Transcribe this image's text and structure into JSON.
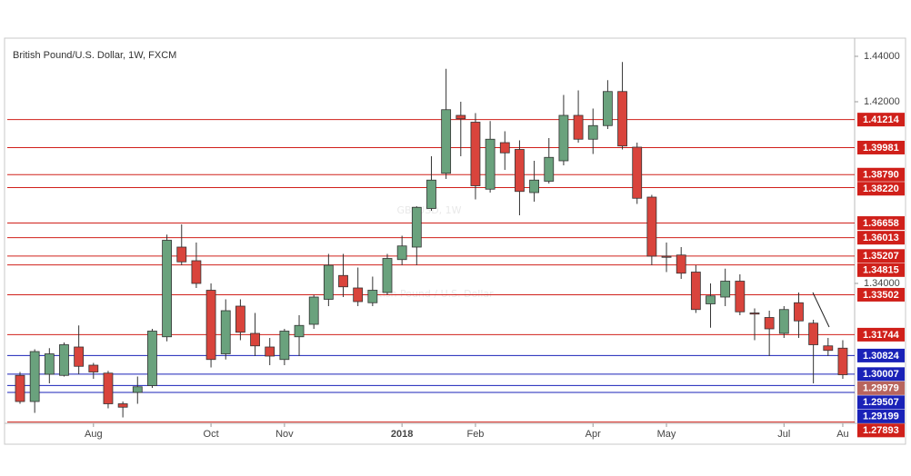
{
  "chart_data": {
    "type": "candlestick",
    "title": "British Pound/U.S. Dollar, 1W, FXCM",
    "watermark": "GBPUSD, 1W",
    "watermark_subtitle": "British Pound / U.S. Dollar",
    "x": [
      null,
      null,
      null,
      null,
      null,
      "Aug",
      null,
      null,
      null,
      null,
      null,
      null,
      null,
      "Oct",
      null,
      null,
      null,
      null,
      "Nov",
      null,
      null,
      null,
      null,
      null,
      null,
      null,
      "2018",
      null,
      null,
      null,
      null,
      "Feb",
      null,
      null,
      null,
      null,
      null,
      null,
      null,
      "Apr",
      null,
      null,
      null,
      null,
      "May",
      null,
      null,
      null,
      null,
      null,
      null,
      null,
      "Jul",
      null,
      null,
      null,
      "Au"
    ],
    "open": [
      1.2995,
      1.288,
      1.3,
      1.2995,
      1.312,
      1.304,
      1.3005,
      1.287,
      1.292,
      1.295,
      1.3165,
      1.356,
      1.35,
      1.337,
      1.309,
      1.33,
      1.318,
      1.312,
      1.3065,
      1.3165,
      1.322,
      1.333,
      1.3435,
      1.338,
      1.3315,
      1.336,
      1.3505,
      1.356,
      1.373,
      1.3885,
      1.414,
      1.411,
      1.3815,
      1.402,
      1.399,
      1.38,
      1.385,
      1.394,
      1.414,
      1.4035,
      1.4095,
      1.4245,
      1.4,
      1.378,
      1.352,
      1.3525,
      1.345,
      1.331,
      1.334,
      1.341,
      1.327,
      1.325,
      1.318,
      1.3315,
      1.3225,
      1.3125,
      1.3115
    ],
    "high": [
      1.301,
      1.311,
      1.3115,
      1.314,
      1.3215,
      1.305,
      1.3015,
      1.288,
      1.299,
      1.32,
      1.3615,
      1.366,
      1.358,
      1.34,
      1.333,
      1.333,
      1.327,
      1.316,
      1.32,
      1.326,
      1.335,
      1.353,
      1.353,
      1.347,
      1.343,
      1.353,
      1.361,
      1.374,
      1.396,
      1.4345,
      1.42,
      1.415,
      1.4115,
      1.407,
      1.403,
      1.394,
      1.404,
      1.423,
      1.425,
      1.417,
      1.4295,
      1.4375,
      1.402,
      1.379,
      1.358,
      1.356,
      1.348,
      1.34,
      1.3465,
      1.344,
      1.329,
      1.328,
      1.33,
      1.336,
      1.324,
      1.316,
      1.315
    ],
    "low": [
      1.287,
      1.283,
      1.296,
      1.299,
      1.3,
      1.298,
      1.285,
      1.281,
      1.287,
      1.294,
      1.3145,
      1.348,
      1.338,
      1.303,
      1.3065,
      1.315,
      1.308,
      1.304,
      1.304,
      1.308,
      1.32,
      1.33,
      1.334,
      1.33,
      1.33,
      1.335,
      1.348,
      1.348,
      1.372,
      1.386,
      1.396,
      1.377,
      1.38,
      1.39,
      1.37,
      1.376,
      1.384,
      1.392,
      1.402,
      1.397,
      1.408,
      1.399,
      1.375,
      1.348,
      1.345,
      1.342,
      1.327,
      1.3205,
      1.33,
      1.326,
      1.315,
      1.308,
      1.316,
      1.316,
      1.296,
      1.308,
      1.298
    ],
    "close": [
      1.288,
      1.31,
      1.309,
      1.313,
      1.3035,
      1.301,
      1.287,
      1.2855,
      1.2945,
      1.319,
      1.359,
      1.3495,
      1.34,
      1.3065,
      1.328,
      1.3185,
      1.3125,
      1.308,
      1.319,
      1.3215,
      1.334,
      1.348,
      1.3385,
      1.332,
      1.337,
      1.351,
      1.3565,
      1.3735,
      1.3855,
      1.4165,
      1.4125,
      1.383,
      1.4035,
      1.3975,
      1.3805,
      1.3855,
      1.3955,
      1.414,
      1.4035,
      1.4095,
      1.4245,
      1.4005,
      1.3775,
      1.352,
      1.3515,
      1.3445,
      1.3285,
      1.3345,
      1.341,
      1.3275,
      1.3265,
      1.32,
      1.3285,
      1.3235,
      1.313,
      1.3105,
      1.29979
    ],
    "up_color": "#6aa27d",
    "down_color": "#d9443c",
    "ylim": [
      1.2784,
      1.4472
    ],
    "yticks": [
      {
        "value": 1.44,
        "label": "1.44000"
      },
      {
        "value": 1.42,
        "label": "1.42000"
      },
      {
        "value": 1.34,
        "label": "1.34000"
      }
    ],
    "levels": [
      {
        "value": 1.41214,
        "color": "#d0201a"
      },
      {
        "value": 1.39981,
        "color": "#d0201a"
      },
      {
        "value": {
          "value": 1.3879,
          "label": "1.38790"
        },
        "color": "#d0201a"
      },
      {
        "value": {
          "value": 1.3822,
          "label": "1.38220"
        },
        "color": "#d0201a"
      },
      {
        "value": 1.36658,
        "color": "#d0201a"
      },
      {
        "value": 1.36013,
        "color": "#d0201a"
      },
      {
        "value": 1.35207,
        "color": "#d0201a"
      },
      {
        "value": 1.34815,
        "color": "#d0201a"
      },
      {
        "value": 1.33502,
        "color": "#d0201a"
      },
      {
        "value": 1.31744,
        "color": "#d0201a"
      },
      {
        "value": 1.30824,
        "color": "#1a22b8"
      },
      {
        "value": 1.30007,
        "color": "#1a22b8"
      },
      {
        "value": 1.29507,
        "color": "#1a22b8"
      },
      {
        "value": 1.29199,
        "color": "#1a22b8"
      },
      {
        "value": 1.27893,
        "color": "#d0201a"
      }
    ],
    "last_price_color": "#b8655e"
  }
}
